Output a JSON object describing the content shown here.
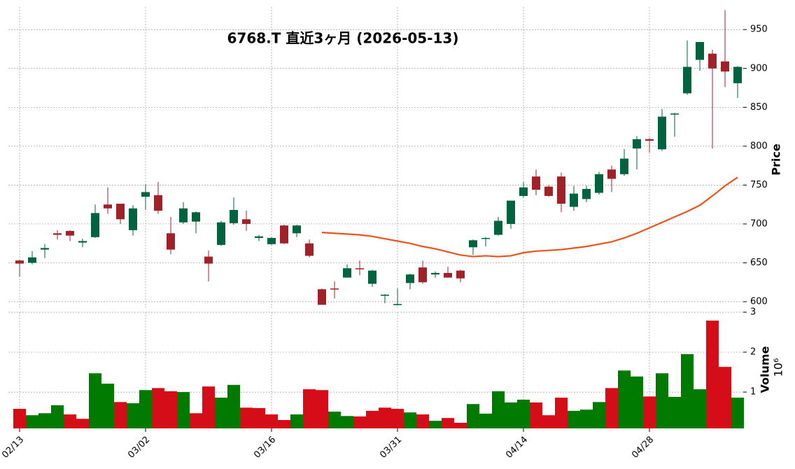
{
  "chart_data": {
    "type": "candlestick",
    "title": "6768.T  直近3ヶ月  (2026-05-13)",
    "ylabel": "Price",
    "categories": [
      "02/13",
      null,
      null,
      null,
      null,
      null,
      null,
      null,
      null,
      null,
      "03/02",
      null,
      null,
      null,
      null,
      null,
      null,
      null,
      null,
      null,
      "03/16",
      null,
      null,
      null,
      null,
      null,
      null,
      null,
      null,
      null,
      "03/31",
      null,
      null,
      null,
      null,
      null,
      null,
      null,
      null,
      null,
      "04/14",
      null,
      null,
      null,
      null,
      null,
      null,
      null,
      null,
      null,
      "04/28",
      null,
      null,
      null,
      null,
      null,
      null,
      null
    ],
    "open": [
      653,
      650,
      667,
      688,
      691,
      676,
      683,
      725,
      726,
      692,
      735,
      737,
      688,
      702,
      703,
      658,
      673,
      701,
      706,
      682,
      674,
      698,
      688,
      675,
      616,
      617,
      631,
      643,
      623,
      608,
      596,
      624,
      644,
      635,
      637,
      640,
      670,
      681,
      686,
      700,
      736,
      761,
      748,
      761,
      722,
      732,
      740,
      770,
      764,
      797,
      809,
      796,
      841,
      868,
      911,
      919,
      909,
      881
    ],
    "high": [
      654,
      665,
      674,
      692,
      692,
      681,
      725,
      747,
      726,
      724,
      751,
      754,
      709,
      728,
      716,
      666,
      704,
      734,
      717,
      686,
      683,
      699,
      699,
      680,
      617,
      626,
      648,
      653,
      641,
      610,
      617,
      636,
      653,
      639,
      645,
      641,
      680,
      683,
      709,
      730,
      754,
      770,
      750,
      766,
      749,
      749,
      767,
      775,
      796,
      813,
      811,
      848,
      843,
      936,
      934,
      924,
      975,
      903
    ],
    "low": [
      632,
      648,
      656,
      680,
      678,
      670,
      682,
      713,
      700,
      685,
      718,
      713,
      661,
      700,
      688,
      626,
      672,
      699,
      691,
      678,
      673,
      674,
      683,
      657,
      596,
      604,
      631,
      634,
      619,
      598,
      595,
      616,
      623,
      631,
      631,
      625,
      660,
      671,
      685,
      694,
      734,
      737,
      735,
      715,
      717,
      728,
      738,
      741,
      762,
      770,
      792,
      794,
      812,
      866,
      897,
      797,
      876,
      862
    ],
    "close": [
      649,
      657,
      669,
      686,
      685,
      678,
      714,
      720,
      706,
      720,
      741,
      717,
      667,
      720,
      715,
      649,
      702,
      718,
      700,
      684,
      682,
      675,
      698,
      659,
      596,
      616,
      643,
      642,
      640,
      609,
      597,
      635,
      625,
      637,
      631,
      630,
      679,
      682,
      704,
      730,
      747,
      744,
      736,
      726,
      739,
      745,
      764,
      758,
      784,
      809,
      807,
      838,
      842,
      902,
      934,
      900,
      896,
      902
    ],
    "up_color": "#006340",
    "down_color": "#a02128",
    "ylim": [
      591,
      979
    ],
    "yticks": [
      600,
      650,
      700,
      750,
      800,
      850,
      900,
      950
    ],
    "grid": true,
    "moving_average": {
      "color": "#e8541c",
      "values": [
        null,
        null,
        null,
        null,
        null,
        null,
        null,
        null,
        null,
        null,
        null,
        null,
        null,
        null,
        null,
        null,
        null,
        null,
        null,
        null,
        null,
        null,
        null,
        null,
        689,
        688,
        687,
        686,
        684,
        681,
        678,
        675,
        671,
        668,
        664,
        660,
        658,
        659,
        658,
        659,
        663,
        665,
        666,
        667,
        669,
        671,
        674,
        677,
        682,
        688,
        695,
        702,
        709,
        716,
        724,
        736,
        749,
        760
      ]
    },
    "volume": {
      "ylabel": "Volume",
      "offset_label": "10⁶",
      "up_color": "#007a00",
      "down_color": "#d50d18",
      "ylim": [
        0.09,
        3
      ],
      "yticks": [
        1,
        2,
        3
      ],
      "values": [
        0.58,
        0.42,
        0.47,
        0.67,
        0.44,
        0.33,
        1.47,
        1.21,
        0.75,
        0.72,
        1.05,
        1.1,
        1.02,
        1.0,
        0.47,
        1.14,
        0.86,
        1.18,
        0.61,
        0.6,
        0.44,
        0.3,
        0.44,
        1.07,
        1.05,
        0.51,
        0.4,
        0.39,
        0.53,
        0.61,
        0.58,
        0.49,
        0.44,
        0.28,
        0.35,
        0.23,
        0.7,
        0.46,
        1.02,
        0.74,
        0.81,
        0.74,
        0.42,
        0.86,
        0.53,
        0.56,
        0.75,
        1.1,
        1.54,
        1.39,
        0.89,
        1.47,
        0.88,
        1.95,
        1.07,
        2.79,
        1.63,
        0.86
      ]
    }
  }
}
